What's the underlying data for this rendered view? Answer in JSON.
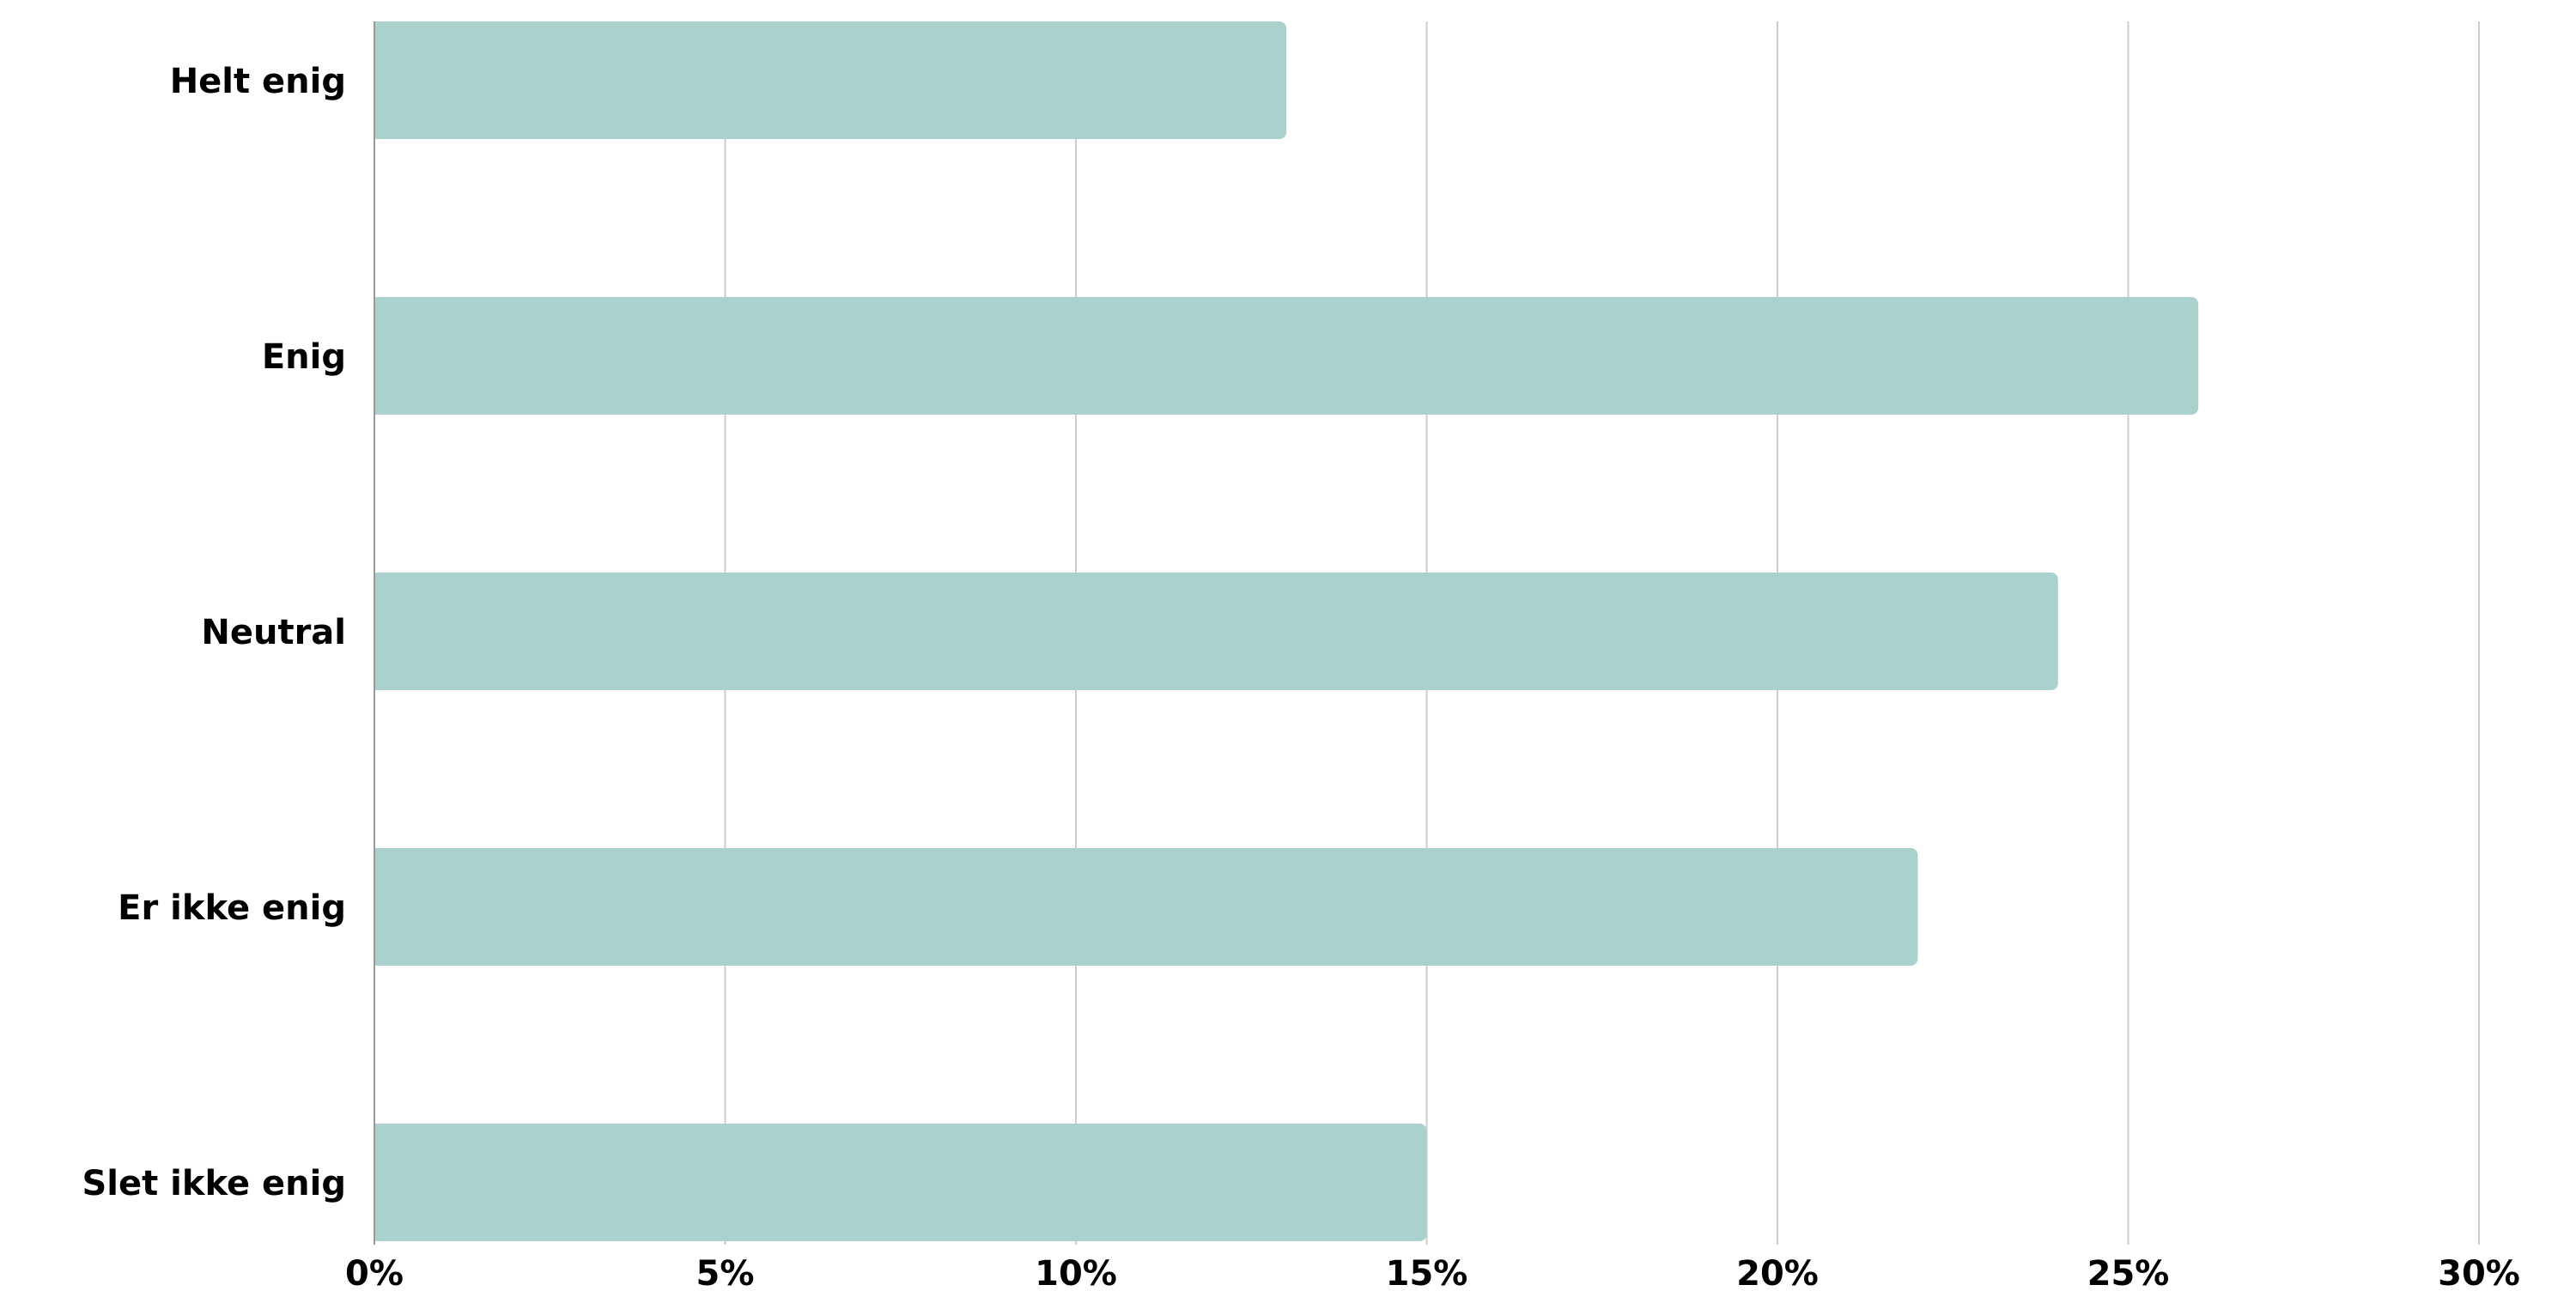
{
  "chart_data": {
    "type": "bar",
    "orientation": "horizontal",
    "categories": [
      "Helt enig",
      "Enig",
      "Neutral",
      "Er ikke enig",
      "Slet ikke enig"
    ],
    "values": [
      13,
      26,
      24,
      22,
      15
    ],
    "unit": "%",
    "xlim": [
      0,
      30
    ],
    "xticks": [
      0,
      5,
      10,
      15,
      20,
      25,
      30
    ],
    "xtick_labels": [
      "0%",
      "5%",
      "10%",
      "15%",
      "20%",
      "25%",
      "30%"
    ],
    "title": "",
    "xlabel": "",
    "ylabel": "",
    "grid": "vertical",
    "legend": "none",
    "colors": {
      "bar": "#abd1ce",
      "grid": "#cccccc",
      "axis": "#999999",
      "text": "#000000"
    }
  }
}
